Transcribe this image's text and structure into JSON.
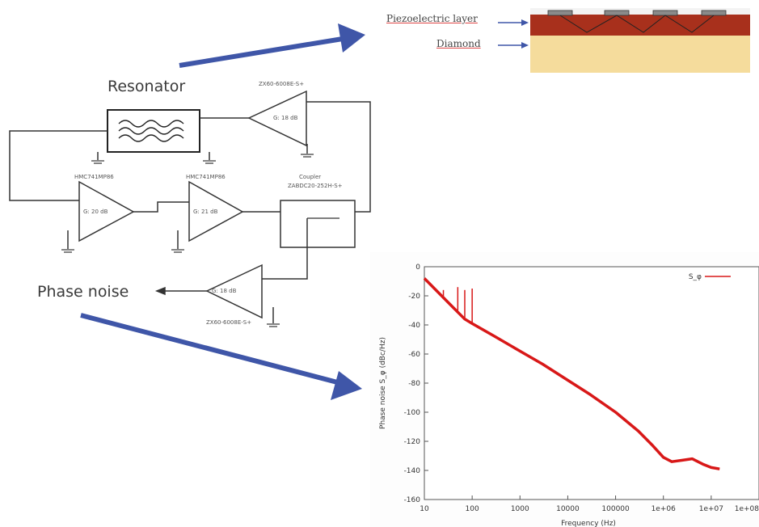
{
  "labels": {
    "resonator": "Resonator",
    "phase_noise": "Phase noise",
    "piezo_layer": "Piezoelectric layer",
    "diamond": "Diamond",
    "amp_top_part": "ZX60-6008E-S+",
    "amp_top_gain": "G: 18 dB",
    "amp1_part": "HMC741MP86",
    "amp1_gain": "G: 20 dB",
    "amp2_part": "HMC741MP86",
    "amp2_gain": "G: 21 dB",
    "coupler_title": "Coupler",
    "coupler_part": "ZABDC20-252H-S+",
    "amp_bottom_part": "ZX60-6008E-S+",
    "amp_bottom_gain": "G: 18 dB"
  },
  "colors": {
    "arrow": "#3f56a8",
    "piezo": "#a8301c",
    "diamond": "#f5dc9c",
    "trace": "#d81818"
  },
  "chart_data": {
    "type": "line",
    "xscale": "log",
    "xlabel": "Frequency (Hz)",
    "ylabel": "Phase noise S_φ (dBc/Hz)",
    "xlim": [
      10,
      100000000
    ],
    "ylim": [
      -160,
      0
    ],
    "xticks": [
      "10",
      "100",
      "1000",
      "10000",
      "100000",
      "1e+06",
      "1e+07",
      "1e+08"
    ],
    "yticks": [
      "0",
      "-20",
      "-40",
      "-60",
      "-80",
      "-100",
      "-120",
      "-140",
      "-160"
    ],
    "legend": "S_φ",
    "legend_position": "top-right",
    "series": [
      {
        "name": "S_φ",
        "color": "#d81818",
        "x": [
          10,
          20,
          40,
          70,
          100,
          300,
          1000,
          3000,
          10000,
          30000,
          100000,
          300000,
          600000,
          1000000,
          1500000,
          2500000,
          4000000,
          7000000,
          10000000,
          15000000
        ],
        "y": [
          -8,
          -18,
          -28,
          -36,
          -39,
          -48,
          -58,
          -67,
          -78,
          -88,
          -100,
          -113,
          -123,
          -131,
          -134,
          -133,
          -132,
          -136,
          -138,
          -139
        ]
      }
    ],
    "spikes": [
      {
        "x": 25,
        "y_top": -16,
        "y_base": -22
      },
      {
        "x": 50,
        "y_top": -14,
        "y_base": -30
      },
      {
        "x": 70,
        "y_top": -16,
        "y_base": -35
      },
      {
        "x": 100,
        "y_top": -15,
        "y_base": -39
      }
    ]
  }
}
